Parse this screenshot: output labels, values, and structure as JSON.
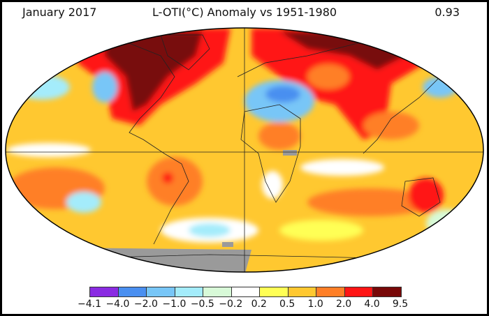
{
  "header": {
    "date": "January 2017",
    "title": "L-OTI(°C) Anomaly vs 1951-1980",
    "global_mean": "0.93"
  },
  "legend": {
    "colors": [
      "#8a2be2",
      "#4a8ff0",
      "#78c6f7",
      "#a4ecfb",
      "#d8fad8",
      "#ffffff",
      "#ffff55",
      "#ffc830",
      "#ff7f27",
      "#ff1515",
      "#780808"
    ],
    "ticks": [
      "−4.1",
      "−4.0",
      "−2.0",
      "−1.0",
      "−0.5",
      "−0.2",
      "0.2",
      "0.5",
      "1.0",
      "2.0",
      "4.0",
      "9.5"
    ]
  },
  "map": {
    "projection": "Robinson",
    "missing_color": "#9a9a9a",
    "background_color": "#ffc830"
  }
}
